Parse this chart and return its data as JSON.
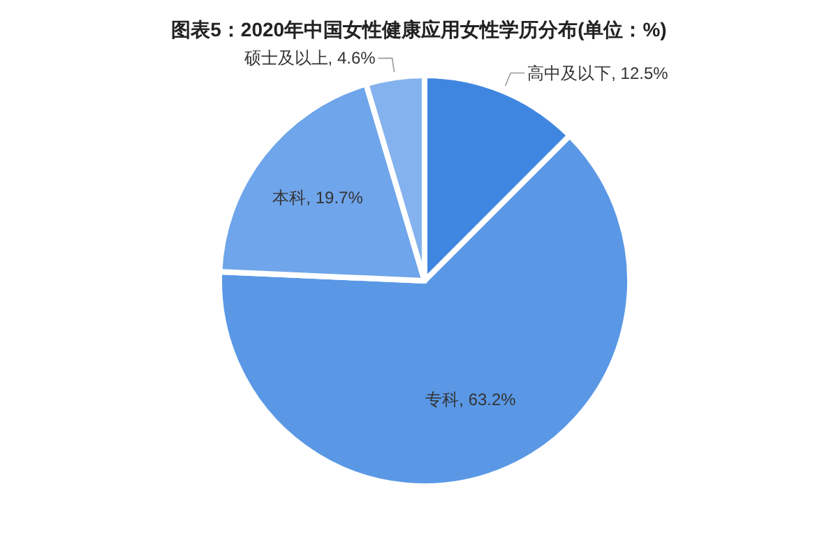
{
  "chart_data": {
    "type": "pie",
    "title": "图表5：2020年中国女性健康应用女性学历分布(单位：%)",
    "categories": [
      "高中及以下",
      "专科",
      "本科",
      "硕士及以上"
    ],
    "values": [
      12.5,
      63.2,
      19.7,
      4.6
    ],
    "value_labels": [
      "12.5%",
      "63.2%",
      "19.7%",
      "4.6%"
    ],
    "colors": [
      "#3f86e0",
      "#5a98e6",
      "#6fa5ea",
      "#84b2ee"
    ],
    "legend": false
  }
}
